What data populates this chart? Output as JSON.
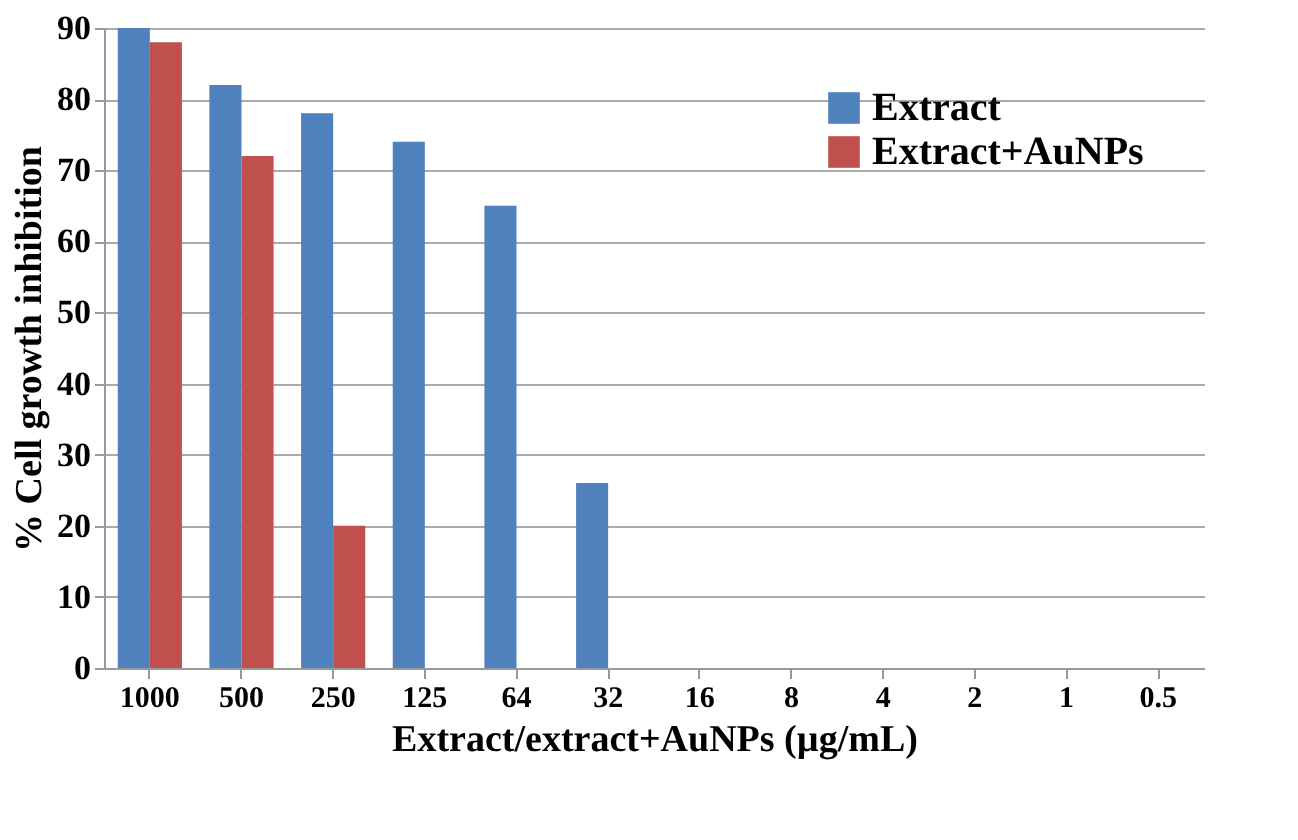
{
  "chart_data": {
    "type": "bar",
    "categories": [
      "1000",
      "500",
      "250",
      "125",
      "64",
      "32",
      "16",
      "8",
      "4",
      "2",
      "1",
      "0.5"
    ],
    "series": [
      {
        "name": "Extract",
        "color": "#4f81bd",
        "values": [
          90,
          82,
          78,
          74,
          65,
          26,
          0,
          0,
          0,
          0,
          0,
          0
        ]
      },
      {
        "name": "Extract+AuNPs",
        "color": "#c0504d",
        "values": [
          88,
          72,
          20,
          0,
          0,
          0,
          0,
          0,
          0,
          0,
          0,
          0
        ]
      }
    ],
    "xlabel": "Extract/extract+AuNPs (µg/mL)",
    "ylabel": "% Cell growth inhibition",
    "ylim": [
      0,
      90
    ],
    "yticks": [
      0,
      10,
      20,
      30,
      40,
      50,
      60,
      70,
      80,
      90
    ],
    "grid": "y",
    "legend": "top right"
  }
}
